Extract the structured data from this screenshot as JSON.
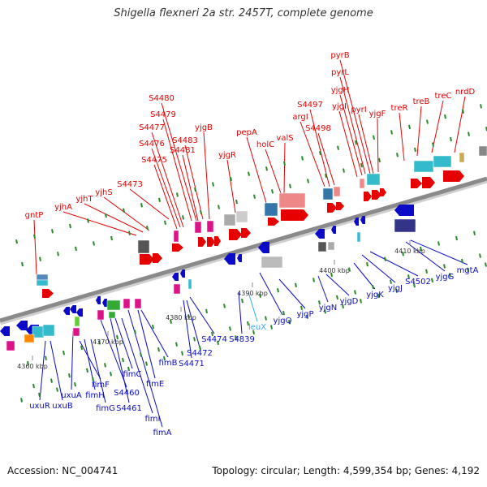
{
  "title": "Shigella flexneri 2a str. 2457T, complete genome",
  "footer": {
    "accession": "Accession: NC_004741",
    "summary": "Topology: circular; Length: 4,599,354 bp; Genes: 4,192"
  },
  "colors": {
    "top_label": "#e60000",
    "bottom_label": "#0a0ac8",
    "trna_label": "#33aaee",
    "axis": "#8a8a8a",
    "tick": "#2a8a2a"
  },
  "scale_labels": [
    "4360 kbp",
    "4370 kbp",
    "4380 kbp",
    "4390 kbp",
    "4400 kbp",
    "4410 kbp"
  ],
  "top_genes": [
    "gntP",
    "yjhA",
    "yjhT",
    "yjhS",
    "S4473",
    "S4475",
    "S4476",
    "S4477",
    "S4479",
    "S4480",
    "S4481",
    "S4483",
    "yjgB",
    "yjgR",
    "pepA",
    "holC",
    "valS",
    "argI",
    "S4497",
    "S4498",
    "yjgI",
    "yjgH",
    "pyrL",
    "pyrB",
    "pyrI",
    "yjgF",
    "treR",
    "treB",
    "treC",
    "nrdD"
  ],
  "bottom_genes": [
    "uxuR",
    "uxuB",
    "uxuA",
    "fimF",
    "fimH",
    "fimG",
    "S4460",
    "S4461",
    "fimC",
    "fimI",
    "fimA",
    "fimE",
    "fimB",
    "S4471",
    "S4472",
    "S4474",
    "S4839",
    "leuX",
    "yjgQ",
    "yjgP",
    "yjgN",
    "yjgD",
    "yjgK",
    "yjgJ",
    "S4502",
    "yjgG",
    "mgtA"
  ]
}
